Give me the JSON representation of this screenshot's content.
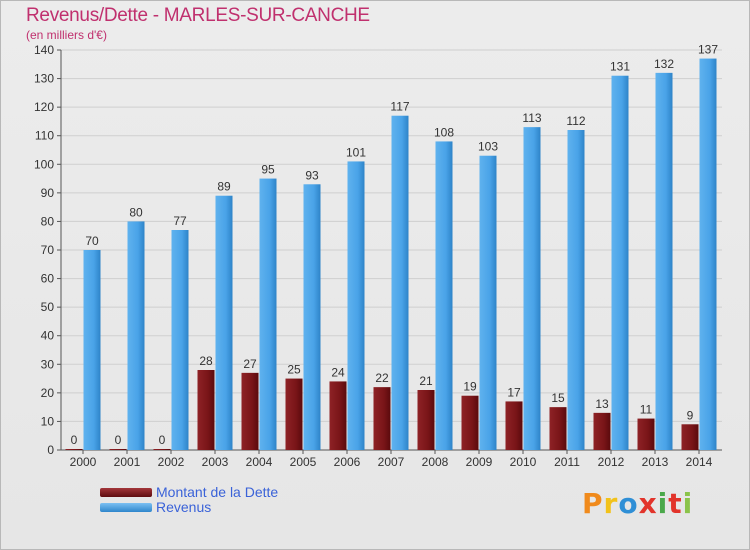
{
  "header": {
    "title": "Revenus/Dette - MARLES-SUR-CANCHE",
    "subtitle": "(en milliers d'€)"
  },
  "legend": {
    "items": [
      {
        "label": "Montant de la Dette",
        "color": "#7a1518"
      },
      {
        "label": "Revenus",
        "color": "#4aa3e8"
      }
    ]
  },
  "logo": {
    "text": "Proxiti",
    "colors": [
      "#f08a1c",
      "#f2c21a",
      "#2f8fd6",
      "#e2342b",
      "#4aa84a",
      "#e2342b",
      "#8bc34a"
    ]
  },
  "chart_data": {
    "type": "bar",
    "categories": [
      "2000",
      "2001",
      "2002",
      "2003",
      "2004",
      "2005",
      "2006",
      "2007",
      "2008",
      "2009",
      "2010",
      "2011",
      "2012",
      "2013",
      "2014"
    ],
    "series": [
      {
        "name": "Montant de la Dette",
        "values": [
          0,
          0,
          0,
          28,
          27,
          25,
          24,
          22,
          21,
          19,
          17,
          15,
          13,
          11,
          9
        ]
      },
      {
        "name": "Revenus",
        "values": [
          70,
          80,
          77,
          89,
          95,
          93,
          101,
          117,
          108,
          103,
          113,
          112,
          131,
          132,
          137
        ]
      }
    ],
    "title": "Revenus/Dette - MARLES-SUR-CANCHE",
    "subtitle": "(en milliers d'€)",
    "ylim": [
      0,
      140
    ],
    "yticks": [
      0,
      10,
      20,
      30,
      40,
      50,
      60,
      70,
      80,
      90,
      100,
      110,
      120,
      130,
      140
    ],
    "grid": true,
    "legend_position": "bottom-left"
  }
}
